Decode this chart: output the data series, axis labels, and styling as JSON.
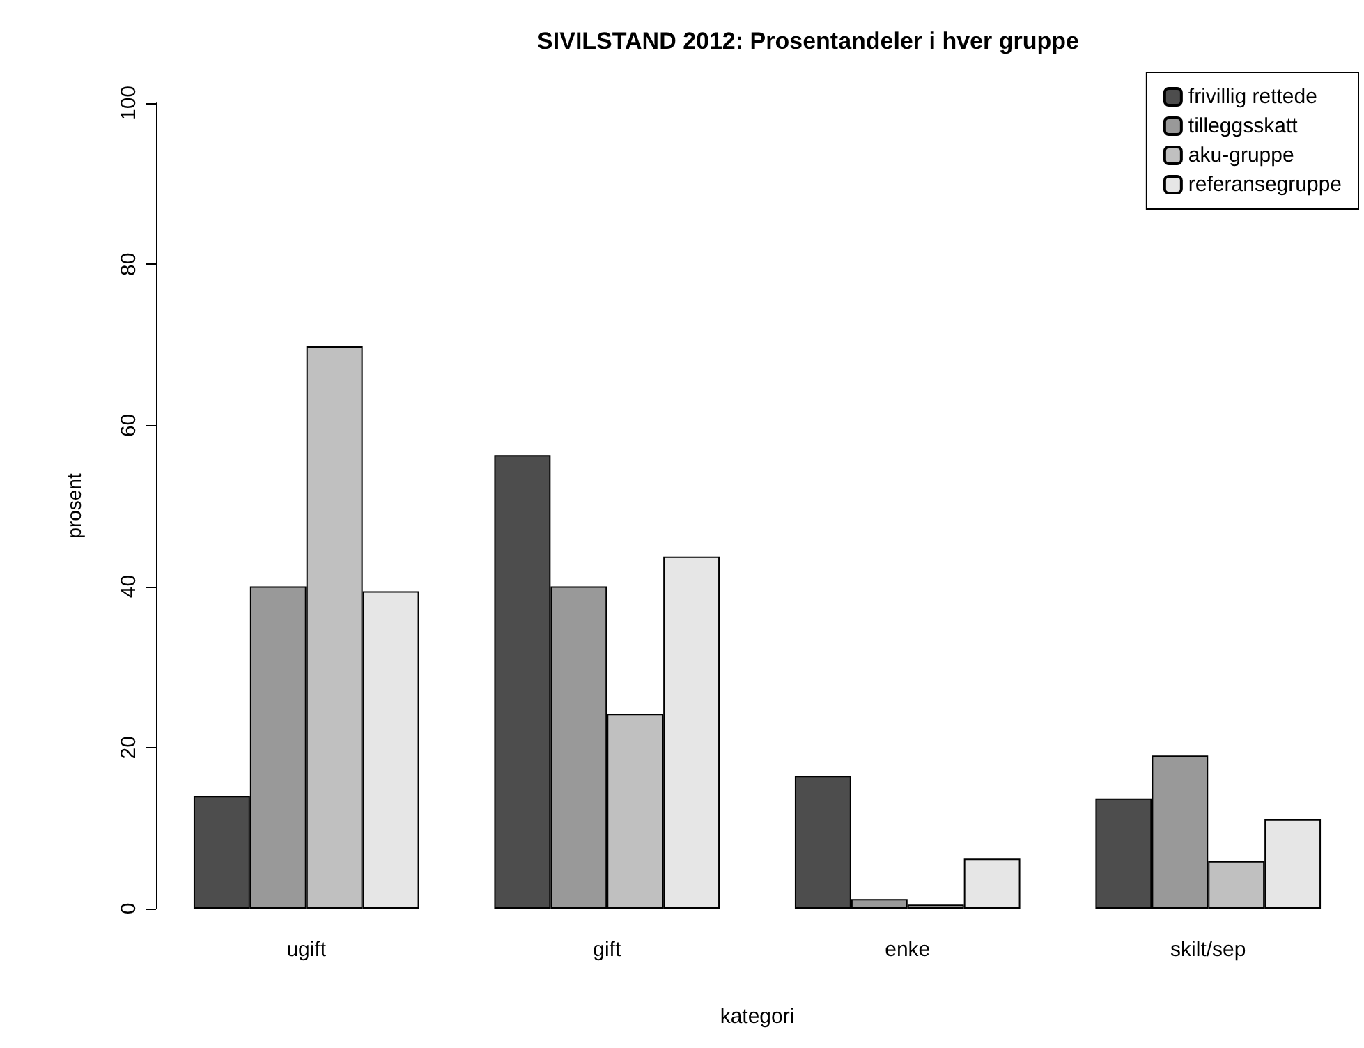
{
  "chart_data": {
    "type": "bar",
    "title": "SIVILSTAND 2012: Prosentandeler i hver gruppe",
    "xlabel": "kategori",
    "ylabel": "prosent",
    "categories": [
      "ugift",
      "gift",
      "enke",
      "skilt/sep"
    ],
    "series": [
      {
        "name": "frivillig rettede",
        "color": "#4d4d4d",
        "values": [
          14,
          56.3,
          16.5,
          13.7
        ]
      },
      {
        "name": "tilleggsskatt",
        "color": "#999999",
        "values": [
          40,
          40,
          1.2,
          19
        ]
      },
      {
        "name": "aku-gruppe",
        "color": "#c0c0c0",
        "values": [
          69.8,
          24.2,
          0.5,
          5.9
        ]
      },
      {
        "name": "referansegruppe",
        "color": "#e6e6e6",
        "values": [
          39.4,
          43.7,
          6.2,
          11.1
        ]
      }
    ],
    "ylim": [
      0,
      100
    ],
    "yticks": [
      0,
      20,
      40,
      60,
      80,
      100
    ],
    "grid": false,
    "legend": "top right"
  }
}
